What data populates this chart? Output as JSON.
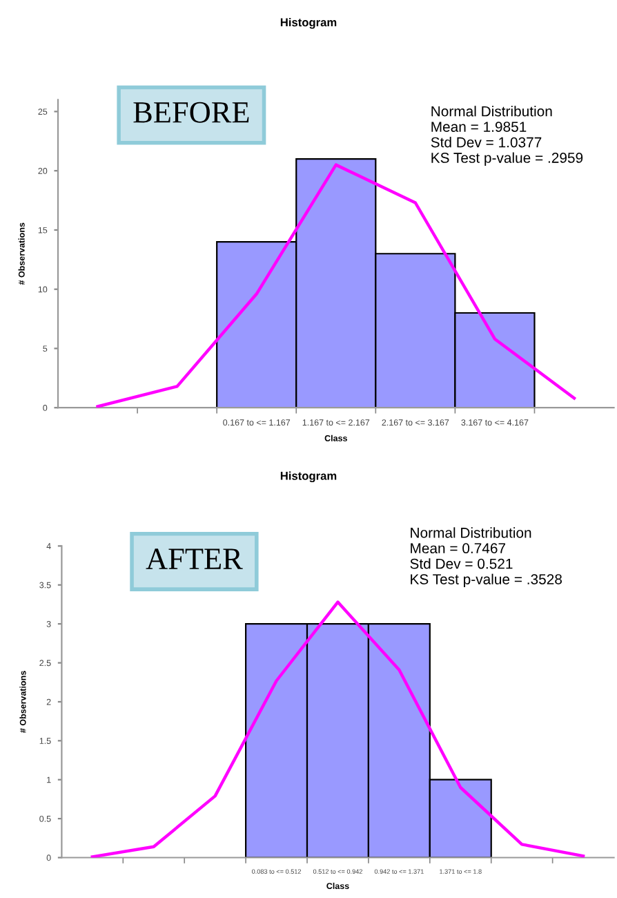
{
  "chart_data": [
    {
      "type": "bar",
      "title": "Histogram",
      "xlabel": "Class",
      "ylabel": "# Observations",
      "annotations": [
        "BEFORE",
        "Normal Distribution\nMean = 1.9851\nStd Dev = 1.0377\nKS Test p-value = .2959"
      ],
      "categories": [
        null,
        null,
        "0.167 to <= 1.167",
        "1.167 to <= 2.167",
        "2.167 to <= 3.167",
        "3.167 to <= 4.167",
        null
      ],
      "series": [
        {
          "color": "#9999ff",
          "values": [
            null,
            null,
            14,
            21,
            13,
            8,
            null
          ]
        },
        {
          "type": "line",
          "color": "#ff00ff",
          "values": [
            0.1,
            1.8,
            9.6,
            20.5,
            17.3,
            5.8,
            0.8
          ]
        }
      ],
      "ylim": [
        0,
        26
      ],
      "yticks": [
        0,
        5,
        10,
        15,
        20,
        25
      ]
    },
    {
      "type": "bar",
      "title": "Histogram",
      "xlabel": "Class",
      "ylabel": "# Observations",
      "annotations": [
        "AFTER",
        "Normal Distribution\nMean = 0.7467\nStd Dev = 0.521\nKS Test p-value = .3528"
      ],
      "categories": [
        null,
        null,
        null,
        "0.083 to <= 0.512",
        "0.512 to <= 0.942",
        "0.942 to <= 1.371",
        "1.371 to <= 1.8",
        null,
        null
      ],
      "series": [
        {
          "color": "#9999ff",
          "values": [
            null,
            null,
            null,
            3,
            3,
            3,
            1,
            null,
            null
          ]
        },
        {
          "type": "line",
          "color": "#ff00ff",
          "values": [
            0.01,
            0.14,
            0.79,
            2.27,
            3.28,
            2.41,
            0.9,
            0.17,
            0.02
          ]
        }
      ],
      "ylim": [
        0,
        4
      ],
      "yticks": [
        0,
        0.5,
        1,
        1.5,
        2,
        2.5,
        3,
        3.5,
        4
      ]
    }
  ]
}
